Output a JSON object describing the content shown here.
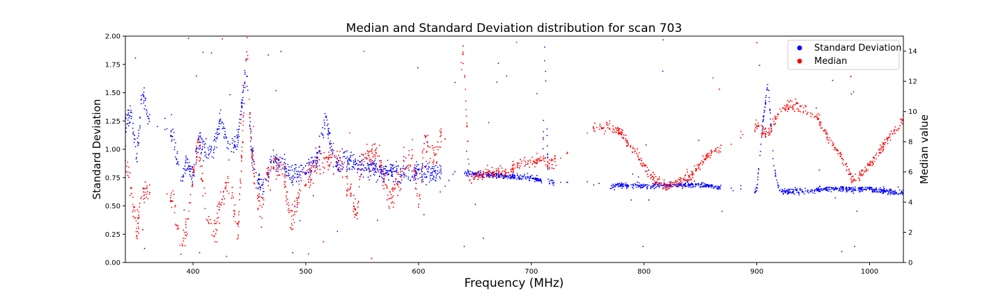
{
  "chart_data": {
    "type": "scatter",
    "title": "Median and Standard Deviation distribution for scan 703",
    "xlabel": "Frequency (MHz)",
    "ylabel_left": "Standard Deviation",
    "ylabel_right": "Median value",
    "xlim": [
      340,
      1030
    ],
    "ylim_left": [
      0,
      2
    ],
    "ylim_right": [
      0,
      15
    ],
    "x_ticks": [
      400,
      500,
      600,
      700,
      800,
      900,
      1000
    ],
    "x_tick_labels": [
      "400",
      "500",
      "600",
      "700",
      "800",
      "900",
      "1000"
    ],
    "y_ticks_left": [
      0,
      0.25,
      0.5,
      0.75,
      1.0,
      1.25,
      1.5,
      1.75,
      2.0
    ],
    "y_tick_labels_left": [
      "0.00",
      "0.25",
      "0.50",
      "0.75",
      "1.00",
      "1.25",
      "1.50",
      "1.75",
      "2.00"
    ],
    "y_ticks_right": [
      0,
      2,
      4,
      6,
      8,
      10,
      12,
      14
    ],
    "y_tick_labels_right": [
      "0",
      "2",
      "4",
      "6",
      "8",
      "10",
      "12",
      "14"
    ],
    "grid": false,
    "legend_position": "top-right",
    "series": [
      {
        "name": "Standard Deviation",
        "color": "#0000ff",
        "axis": "left",
        "profile": [
          [
            340,
            1.2
          ],
          [
            345,
            1.35
          ],
          [
            350,
            0.9
          ],
          [
            355,
            1.5
          ],
          [
            360,
            1.3
          ],
          [
            383,
            1.1
          ],
          [
            390,
            0.7
          ],
          [
            395,
            0.9
          ],
          [
            400,
            0.75
          ],
          [
            405,
            1.1
          ],
          [
            412,
            0.95
          ],
          [
            418,
            1.0
          ],
          [
            425,
            1.28
          ],
          [
            432,
            0.98
          ],
          [
            440,
            1.1
          ],
          [
            447,
            1.75
          ],
          [
            452,
            1.0
          ],
          [
            458,
            0.7
          ],
          [
            463,
            0.65
          ],
          [
            470,
            0.9
          ],
          [
            480,
            0.88
          ],
          [
            487,
            0.75
          ],
          [
            495,
            0.8
          ],
          [
            500,
            0.82
          ],
          [
            510,
            0.9
          ],
          [
            518,
            1.3
          ],
          [
            525,
            0.88
          ],
          [
            535,
            0.9
          ],
          [
            550,
            0.85
          ],
          [
            560,
            0.82
          ],
          [
            570,
            0.8
          ],
          [
            590,
            0.8
          ],
          [
            615,
            0.8
          ],
          [
            640,
            0.79
          ],
          [
            680,
            0.76
          ],
          [
            700,
            0.74
          ],
          [
            710,
            0.73
          ],
          [
            712,
            1.95
          ],
          [
            715,
            0.72
          ],
          [
            730,
            0.7
          ],
          [
            755,
            0.7
          ],
          [
            770,
            0.68
          ],
          [
            790,
            0.68
          ],
          [
            820,
            0.68
          ],
          [
            845,
            0.69
          ],
          [
            870,
            0.66
          ],
          [
            880,
            0.66
          ],
          [
            900,
            0.63
          ],
          [
            905,
            1.2
          ],
          [
            910,
            1.6
          ],
          [
            915,
            0.85
          ],
          [
            920,
            0.63
          ],
          [
            940,
            0.63
          ],
          [
            960,
            0.65
          ],
          [
            980,
            0.65
          ],
          [
            1000,
            0.65
          ],
          [
            1020,
            0.62
          ],
          [
            1030,
            0.62
          ]
        ],
        "gaps": [
          [
            362,
            380
          ],
          [
            620,
            640
          ],
          [
            720,
            770
          ],
          [
            870,
            898
          ]
        ]
      },
      {
        "name": "Median",
        "color": "#ff0000",
        "axis": "right",
        "profile": [
          [
            340,
            7.0
          ],
          [
            345,
            5.0
          ],
          [
            350,
            2.0
          ],
          [
            355,
            4.5
          ],
          [
            360,
            5.0
          ],
          [
            383,
            4.0
          ],
          [
            390,
            1.0
          ],
          [
            395,
            2.5
          ],
          [
            400,
            6.0
          ],
          [
            405,
            8.0
          ],
          [
            412,
            3.0
          ],
          [
            420,
            2.0
          ],
          [
            425,
            4.0
          ],
          [
            432,
            5.5
          ],
          [
            440,
            2.0
          ],
          [
            445,
            10.0
          ],
          [
            448,
            14.5
          ],
          [
            452,
            7.0
          ],
          [
            460,
            3.0
          ],
          [
            465,
            5.5
          ],
          [
            472,
            6.5
          ],
          [
            480,
            6.0
          ],
          [
            487,
            2.5
          ],
          [
            495,
            5.0
          ],
          [
            510,
            6.5
          ],
          [
            520,
            7.0
          ],
          [
            530,
            7.0
          ],
          [
            545,
            3.0
          ],
          [
            550,
            7.0
          ],
          [
            565,
            7.0
          ],
          [
            575,
            4.0
          ],
          [
            585,
            6.0
          ],
          [
            595,
            7.5
          ],
          [
            600,
            3.5
          ],
          [
            605,
            8.0
          ],
          [
            615,
            7.0
          ],
          [
            640,
            14.0
          ],
          [
            645,
            5.5
          ],
          [
            660,
            6.0
          ],
          [
            680,
            6.0
          ],
          [
            690,
            6.5
          ],
          [
            700,
            6.5
          ],
          [
            710,
            7.0
          ],
          [
            715,
            6.5
          ],
          [
            730,
            7.0
          ],
          [
            758,
            9.0
          ],
          [
            770,
            9.0
          ],
          [
            780,
            8.5
          ],
          [
            790,
            7.5
          ],
          [
            800,
            6.5
          ],
          [
            810,
            5.5
          ],
          [
            820,
            5.0
          ],
          [
            835,
            5.5
          ],
          [
            845,
            6.0
          ],
          [
            855,
            7.0
          ],
          [
            865,
            7.5
          ],
          [
            870,
            7.5
          ],
          [
            900,
            9.0
          ],
          [
            910,
            8.5
          ],
          [
            920,
            10.0
          ],
          [
            930,
            10.5
          ],
          [
            945,
            10.0
          ],
          [
            955,
            9.5
          ],
          [
            965,
            8.0
          ],
          [
            975,
            7.0
          ],
          [
            985,
            5.5
          ],
          [
            995,
            6.0
          ],
          [
            1005,
            7.0
          ],
          [
            1015,
            8.0
          ],
          [
            1030,
            9.5
          ]
        ],
        "gaps": [
          [
            362,
            380
          ],
          [
            620,
            638
          ],
          [
            722,
            755
          ],
          [
            870,
            898
          ]
        ]
      }
    ]
  }
}
